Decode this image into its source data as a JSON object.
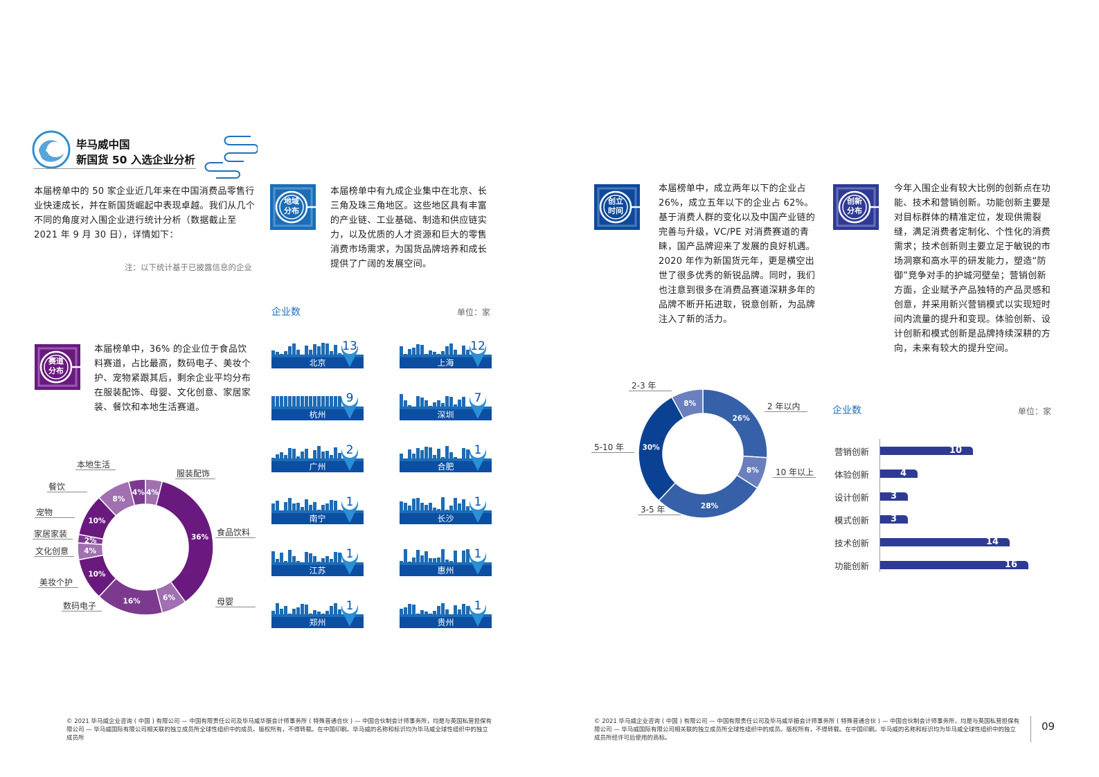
{
  "header": {
    "title_line1": "毕马威中国",
    "title_line2": "新国货 50 入选企业分析"
  },
  "intro": {
    "text": "本届榜单中的 50 家企业近几年来在中国消费品零售行业快速成长，并在新国货崛起中表现卓越。我们从几个不同的角度对入围企业进行统计分析（数据截止至 2021 年 9 月 30 日），详情如下：",
    "note": "注：以下统计基于已披露信息的企业"
  },
  "region": {
    "badge_line1": "地域",
    "badge_line2": "分布",
    "text": "本届榜单中有九成企业集中在北京、长三角及珠三角地区。这些地区具有丰富的产业链、工业基础、制造和供应链实力，以及优质的人才资源和巨大的零售消费市场需求，为国货品牌培养和成长提供了广阔的发展空间。",
    "chart_title": "企业数",
    "unit": "单位：家",
    "cities": [
      {
        "name": "北京",
        "count": "13"
      },
      {
        "name": "上海",
        "count": "12"
      },
      {
        "name": "杭州",
        "count": "9"
      },
      {
        "name": "深圳",
        "count": "7"
      },
      {
        "name": "广州",
        "count": "2"
      },
      {
        "name": "合肥",
        "count": "1"
      },
      {
        "name": "南宁",
        "count": "1"
      },
      {
        "name": "长沙",
        "count": "1"
      },
      {
        "name": "江苏",
        "count": "1"
      },
      {
        "name": "惠州",
        "count": "1"
      },
      {
        "name": "郑州",
        "count": "1"
      },
      {
        "name": "贵州",
        "count": "1"
      }
    ]
  },
  "track": {
    "badge_line1": "赛道",
    "badge_line2": "分布",
    "text": "本届榜单中，36% 的企业位于食品饮料赛道，占比最高，数码电子、美妆个护、宠物紧跟其后，剩余企业平均分布在服装配饰、母婴、文化创意、家居家装、餐饮和本地生活赛道。"
  },
  "founding": {
    "badge_line1": "创立",
    "badge_line2": "时间",
    "text": "本届榜单中，成立两年以下的企业占 26%，成立五年以下的企业占 62%。基于消费人群的变化以及中国产业链的完善与升级，VC/PE 对消费赛道的青睐，国产品牌迎来了发展的良好机遇。2020 年作为新国货元年，更是横空出世了很多优秀的新锐品牌。同时，我们也注意到很多在消费品赛道深耕多年的品牌不断开拓进取，锐意创新，为品牌注入了新的活力。"
  },
  "innovation": {
    "badge_line1": "创新",
    "badge_line2": "分布",
    "text": "今年入围企业有较大比例的创新点在功能、技术和营销创新。功能创新主要是对目标群体的精准定位，发现供需裂缝，满足消费者定制化、个性化的消费需求；技术创新则主要立足于敏锐的市场洞察和高水平的研发能力，塑造“防御”竞争对手的护城河壁垒；营销创新方面，企业赋予产品独特的产品灵感和创意，并采用新兴营销模式以实现短时间内流量的提升和变现。体验创新、设计创新和模式创新是品牌持续深耕的方向，未来有较大的提升空间。",
    "chart_title": "企业数",
    "unit": "单位：家"
  },
  "chart_data": [
    {
      "type": "pie",
      "title": "赛道分布",
      "categories": [
        "服装配饰",
        "食品饮料",
        "母婴",
        "数码电子",
        "美妆个护",
        "文化创意",
        "家居家装",
        "宠物",
        "餐饮",
        "本地生活"
      ],
      "values": [
        4,
        36,
        6,
        16,
        10,
        4,
        2,
        10,
        8,
        4
      ],
      "labels": [
        "4%",
        "36%",
        "6%",
        "16%",
        "10%",
        "4%",
        "2%",
        "10%",
        "8%",
        "4%"
      ],
      "colors": [
        "#a070b0",
        "#6a1a7e",
        "#a070b0",
        "#7c3a8f",
        "#6a1a7e",
        "#a070b0",
        "#7c3a8f",
        "#6a1a7e",
        "#a070b0",
        "#7c3a8f"
      ],
      "style": "donut"
    },
    {
      "type": "pie",
      "title": "创立时间",
      "categories": [
        "2 年以内",
        "10 年以上",
        "3-5 年",
        "5-10 年",
        "2-3 年"
      ],
      "values": [
        26,
        8,
        28,
        30,
        8
      ],
      "labels": [
        "26%",
        "8%",
        "28%",
        "30%",
        "8%"
      ],
      "colors": [
        "#3661a8",
        "#6b7fbf",
        "#3661a8",
        "#0b4193",
        "#6b7fbf"
      ],
      "style": "donut"
    },
    {
      "type": "bar",
      "title": "企业数",
      "unit": "单位：家",
      "orientation": "horizontal",
      "categories": [
        "营销创新",
        "体验创新",
        "设计创新",
        "模式创新",
        "技术创新",
        "功能创新"
      ],
      "values": [
        10,
        4,
        3,
        3,
        14,
        16
      ],
      "color": "#2e3a93"
    },
    {
      "type": "bar",
      "title": "企业数",
      "unit": "单位：家",
      "categories": [
        "北京",
        "上海",
        "杭州",
        "深圳",
        "广州",
        "合肥",
        "南宁",
        "长沙",
        "江苏",
        "惠州",
        "郑州",
        "贵州"
      ],
      "values": [
        13,
        12,
        9,
        7,
        2,
        1,
        1,
        1,
        1,
        1,
        1,
        1
      ]
    }
  ],
  "footer": {
    "left": "© 2021 毕马威企业咨询 ( 中国 ) 有限公司 — 中国有限责任公司及毕马威华振会计师事务所 ( 特殊普通合伙 ) — 中国合伙制会计师事务所，均是与英国私营担保有限公司 — 毕马威国际有限公司相关联的独立成员所全球性组织中的成员。版权所有，不得转载。在中国印刷。毕马威的名称和标识均为毕马威全球性组织中的独立成员所",
    "right": "© 2021 毕马威企业咨询 ( 中国 ) 有限公司 — 中国有限责任公司及毕马威华振会计师事务所 ( 特殊普通合伙 ) — 中国合伙制会计师事务所，均是与英国私营担保有限公司 — 毕马威国际有限公司相关联的独立成员所全球性组织中的成员。版权所有，不得转载。在中国印刷。毕马威的名称和标识均为毕马威全球性组织中的独立成员所经许可后使用的商标。",
    "page_number": "09"
  }
}
